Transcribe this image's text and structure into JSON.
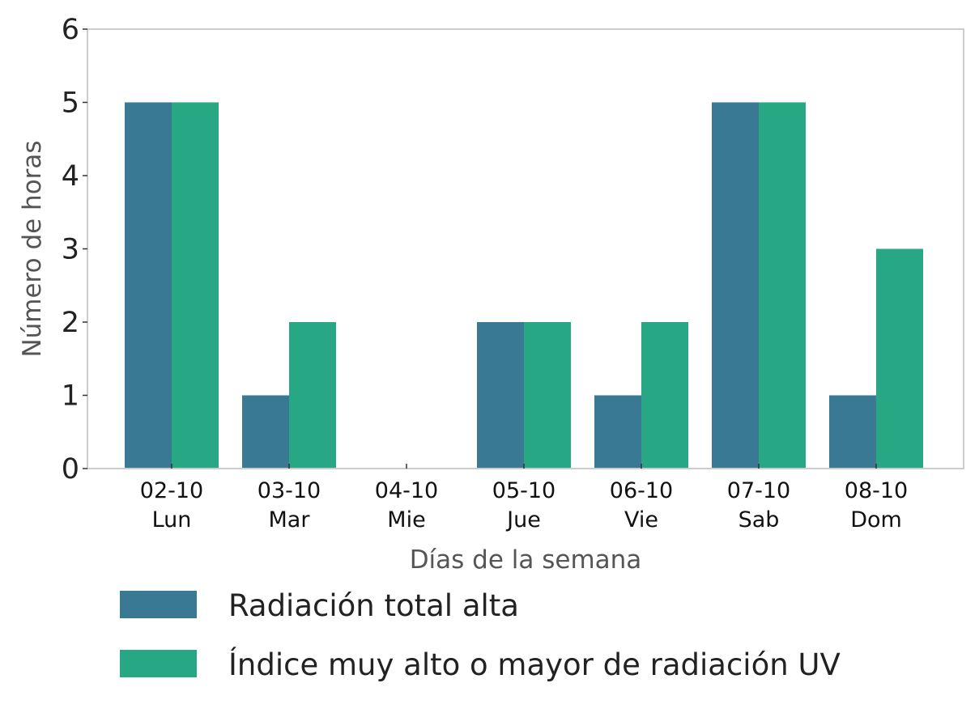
{
  "chart_data": {
    "type": "bar",
    "categories": [
      [
        "02-10",
        "Lun"
      ],
      [
        "03-10",
        "Mar"
      ],
      [
        "04-10",
        "Mie"
      ],
      [
        "05-10",
        "Jue"
      ],
      [
        "06-10",
        "Vie"
      ],
      [
        "07-10",
        "Sab"
      ],
      [
        "08-10",
        "Dom"
      ]
    ],
    "series": [
      {
        "name": "Radiación total alta",
        "color": "#3a7993",
        "values": [
          5,
          1,
          0,
          2,
          1,
          5,
          1
        ]
      },
      {
        "name": "Índice muy alto o mayor de radiación UV",
        "color": "#28a784",
        "values": [
          5,
          2,
          0,
          2,
          2,
          5,
          3
        ]
      }
    ],
    "title": "",
    "xlabel": "Días de la semana",
    "ylabel": "Número de horas",
    "ylim": [
      0,
      6
    ],
    "yticks": [
      0,
      1,
      2,
      3,
      4,
      5,
      6
    ],
    "grid": false,
    "legend_position": "bottom"
  }
}
